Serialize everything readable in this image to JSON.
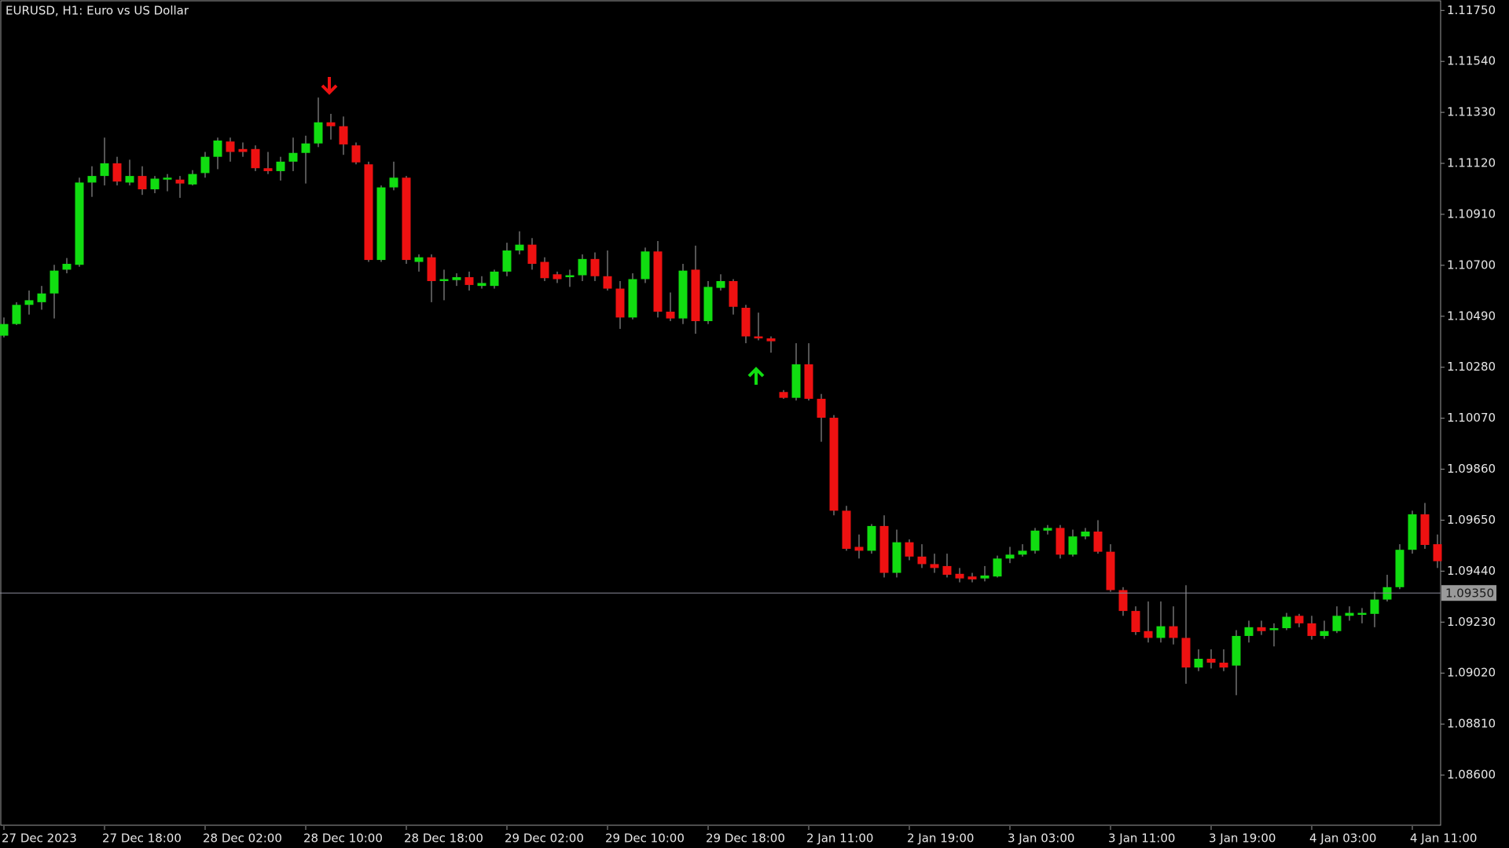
{
  "chart_data": {
    "type": "candlestick",
    "title": "EURUSD, H1:  Euro vs US Dollar",
    "categories": [
      "27 Dec 2023",
      null,
      null,
      null,
      null,
      null,
      null,
      null,
      "27 Dec 18:00",
      null,
      null,
      null,
      null,
      null,
      null,
      null,
      "28 Dec 02:00",
      null,
      null,
      null,
      null,
      null,
      null,
      null,
      "28 Dec 10:00",
      null,
      null,
      null,
      null,
      null,
      null,
      null,
      "28 Dec 18:00",
      null,
      null,
      null,
      null,
      null,
      null,
      null,
      "29 Dec 02:00",
      null,
      null,
      null,
      null,
      null,
      null,
      null,
      "29 Dec 10:00",
      null,
      null,
      null,
      null,
      null,
      null,
      null,
      "29 Dec 18:00",
      null,
      null,
      null,
      null,
      null,
      null,
      null,
      "2 Jan 11:00",
      null,
      null,
      null,
      null,
      null,
      null,
      null,
      "2 Jan 19:00",
      null,
      null,
      null,
      null,
      null,
      null,
      null,
      "3 Jan 03:00",
      null,
      null,
      null,
      null,
      null,
      null,
      null,
      "3 Jan 11:00",
      null,
      null,
      null,
      null,
      null,
      null,
      null,
      "3 Jan 19:00",
      null,
      null,
      null,
      null,
      null,
      null,
      null,
      "4 Jan 03:00",
      null,
      null,
      null,
      null,
      null,
      null,
      null,
      "4 Jan 11:00",
      null,
      null
    ],
    "open": [
      1.1041,
      1.10458,
      1.10537,
      1.10548,
      1.10584,
      1.10682,
      1.10702,
      1.11041,
      1.11068,
      1.1112,
      1.11041,
      1.11068,
      1.11013,
      1.11053,
      1.11053,
      1.11033,
      1.1108,
      1.11147,
      1.1121,
      1.11179,
      1.11179,
      1.111,
      1.11088,
      1.11127,
      1.11163,
      1.11202,
      1.11289,
      1.11273,
      1.11194,
      1.11116,
      1.10722,
      1.11021,
      1.11061,
      1.10714,
      1.10733,
      1.10635,
      1.10639,
      1.10651,
      1.10615,
      1.10615,
      1.10674,
      1.10761,
      1.10785,
      1.10714,
      1.10663,
      1.10651,
      1.10659,
      1.10726,
      1.10655,
      1.10604,
      1.10485,
      1.10643,
      1.10757,
      1.10509,
      1.10481,
      1.10682,
      1.1047,
      1.10607,
      1.10635,
      1.10525,
      1.10407,
      1.10399,
      1.10178,
      1.10154,
      1.10292,
      1.1015,
      1.10072,
      1.09689,
      1.0954,
      1.09524,
      1.09626,
      1.09433,
      1.09559,
      1.095,
      1.09469,
      1.09461,
      1.09429,
      1.09418,
      1.0941,
      1.09418,
      1.09492,
      1.09508,
      1.09524,
      1.09607,
      1.09618,
      1.09508,
      1.09583,
      1.09603,
      1.0952,
      1.09362,
      1.09276,
      1.09193,
      1.09165,
      1.09213,
      1.09165,
      1.09043,
      1.09079,
      1.09063,
      1.09051,
      1.09173,
      1.09209,
      1.09197,
      1.09205,
      1.09256,
      1.09225,
      1.09173,
      1.09193,
      1.09256,
      1.0926,
      1.09264,
      1.09323,
      1.09374,
      1.09528,
      1.09674,
      1.09551
    ],
    "high": [
      1.10485,
      1.10548,
      1.10596,
      1.10615,
      1.10702,
      1.1073,
      1.11061,
      1.11108,
      1.11226,
      1.11147,
      1.11135,
      1.11108,
      1.11068,
      1.11076,
      1.11068,
      1.11092,
      1.11167,
      1.11226,
      1.11226,
      1.11206,
      1.11194,
      1.11167,
      1.11147,
      1.11226,
      1.11234,
      1.11391,
      1.11324,
      1.11313,
      1.11206,
      1.11127,
      1.11029,
      1.11127,
      1.11068,
      1.10745,
      1.10745,
      1.10682,
      1.10667,
      1.10674,
      1.10655,
      1.10682,
      1.10793,
      1.1084,
      1.10812,
      1.10733,
      1.10674,
      1.10682,
      1.10745,
      1.10753,
      1.10761,
      1.10635,
      1.10667,
      1.10773,
      1.108,
      1.10588,
      1.10706,
      1.10781,
      1.10635,
      1.10663,
      1.10643,
      1.10537,
      1.10505,
      1.10407,
      1.10186,
      1.10379,
      1.10379,
      1.1017,
      1.10083,
      1.09709,
      1.09591,
      1.09634,
      1.0967,
      1.09611,
      1.09571,
      1.09551,
      1.09512,
      1.09512,
      1.09453,
      1.09433,
      1.09461,
      1.09504,
      1.0954,
      1.09551,
      1.09618,
      1.0963,
      1.0963,
      1.09611,
      1.09618,
      1.0965,
      1.09551,
      1.09374,
      1.09295,
      1.09315,
      1.09315,
      1.09295,
      1.09382,
      1.09118,
      1.09118,
      1.09118,
      1.09197,
      1.09236,
      1.09236,
      1.09225,
      1.09268,
      1.09264,
      1.09256,
      1.09236,
      1.09295,
      1.09295,
      1.09288,
      1.09355,
      1.09425,
      1.09551,
      1.09689,
      1.09721,
      1.09591
    ],
    "low": [
      1.10403,
      1.10454,
      1.10497,
      1.10517,
      1.10481,
      1.10667,
      1.10694,
      1.10982,
      1.11029,
      1.11029,
      1.11029,
      1.1099,
      1.10997,
      1.11005,
      1.10978,
      1.11029,
      1.11061,
      1.11096,
      1.11127,
      1.11147,
      1.11088,
      1.11076,
      1.11049,
      1.11088,
      1.11037,
      1.11187,
      1.11218,
      1.11155,
      1.11116,
      1.10714,
      1.10714,
      1.11009,
      1.10706,
      1.10674,
      1.10548,
      1.10556,
      1.10615,
      1.10596,
      1.10604,
      1.10604,
      1.10655,
      1.10745,
      1.10682,
      1.10635,
      1.10627,
      1.10611,
      1.10635,
      1.10635,
      1.10596,
      1.10438,
      1.10477,
      1.10627,
      1.10485,
      1.1047,
      1.10458,
      1.10418,
      1.10458,
      1.10596,
      1.10497,
      1.10379,
      1.10391,
      1.1034,
      1.1015,
      1.10143,
      1.10143,
      1.09973,
      1.0967,
      1.09524,
      1.09492,
      1.09512,
      1.09414,
      1.09414,
      1.09485,
      1.09453,
      1.09433,
      1.09414,
      1.09394,
      1.09394,
      1.09398,
      1.09414,
      1.09473,
      1.095,
      1.09512,
      1.09591,
      1.09492,
      1.095,
      1.09571,
      1.09512,
      1.09355,
      1.09256,
      1.09177,
      1.09146,
      1.09146,
      1.09138,
      1.08976,
      1.09028,
      1.09039,
      1.09028,
      1.08929,
      1.09146,
      1.09177,
      1.0913,
      1.09197,
      1.09209,
      1.09158,
      1.09161,
      1.09185,
      1.09236,
      1.09225,
      1.09209,
      1.09315,
      1.09366,
      1.09512,
      1.09532,
      1.09453
    ],
    "close": [
      1.10458,
      1.10537,
      1.10556,
      1.10584,
      1.10678,
      1.10706,
      1.11041,
      1.11068,
      1.1112,
      1.11045,
      1.11068,
      1.11013,
      1.11057,
      1.11061,
      1.11037,
      1.11076,
      1.11147,
      1.11214,
      1.11167,
      1.11167,
      1.111,
      1.11088,
      1.11127,
      1.11163,
      1.11202,
      1.11289,
      1.11273,
      1.11198,
      1.11124,
      1.10722,
      1.11021,
      1.11061,
      1.10722,
      1.10733,
      1.10635,
      1.10643,
      1.10651,
      1.10619,
      1.10627,
      1.10674,
      1.10761,
      1.10785,
      1.10706,
      1.10647,
      1.10643,
      1.10659,
      1.10726,
      1.10655,
      1.10604,
      1.10485,
      1.10643,
      1.10757,
      1.10509,
      1.10481,
      1.10678,
      1.1047,
      1.10611,
      1.10635,
      1.10529,
      1.10407,
      1.10399,
      1.10387,
      1.10154,
      1.10292,
      1.1015,
      1.10072,
      1.09689,
      1.09532,
      1.09524,
      1.09626,
      1.09433,
      1.09559,
      1.095,
      1.09469,
      1.09453,
      1.09425,
      1.0941,
      1.09406,
      1.09422,
      1.09492,
      1.09508,
      1.09524,
      1.09607,
      1.09618,
      1.09508,
      1.09583,
      1.09603,
      1.0952,
      1.09362,
      1.09276,
      1.09189,
      1.09165,
      1.09213,
      1.09165,
      1.09043,
      1.09079,
      1.09063,
      1.09043,
      1.09173,
      1.09209,
      1.09193,
      1.09205,
      1.09252,
      1.09225,
      1.09173,
      1.09193,
      1.09256,
      1.09268,
      1.09268,
      1.09323,
      1.09374,
      1.09528,
      1.09674,
      1.09548,
      1.09481
    ],
    "up_color": "#11dd11",
    "down_color": "#ee1111",
    "wick_color": "#8c8c8c",
    "ylim": [
      1.0839,
      1.1178
    ],
    "yticks": [
      {
        "value": 1.1175,
        "label": "1.11750"
      },
      {
        "value": 1.1154,
        "label": "1.11540"
      },
      {
        "value": 1.1133,
        "label": "1.11330"
      },
      {
        "value": 1.1112,
        "label": "1.11120"
      },
      {
        "value": 1.1091,
        "label": "1.10910"
      },
      {
        "value": 1.107,
        "label": "1.10700"
      },
      {
        "value": 1.1049,
        "label": "1.10490"
      },
      {
        "value": 1.1028,
        "label": "1.10280"
      },
      {
        "value": 1.1007,
        "label": "1.10070"
      },
      {
        "value": 1.0986,
        "label": "1.09860"
      },
      {
        "value": 1.0965,
        "label": "1.09650"
      },
      {
        "value": 1.0944,
        "label": "1.09440"
      },
      {
        "value": 1.0923,
        "label": "1.09230"
      },
      {
        "value": 1.0902,
        "label": "1.09020"
      },
      {
        "value": 1.0881,
        "label": "1.08810"
      },
      {
        "value": 1.086,
        "label": "1.08600"
      }
    ],
    "current_price": {
      "value": 1.0935,
      "label": "1.09350"
    },
    "grid": false
  }
}
